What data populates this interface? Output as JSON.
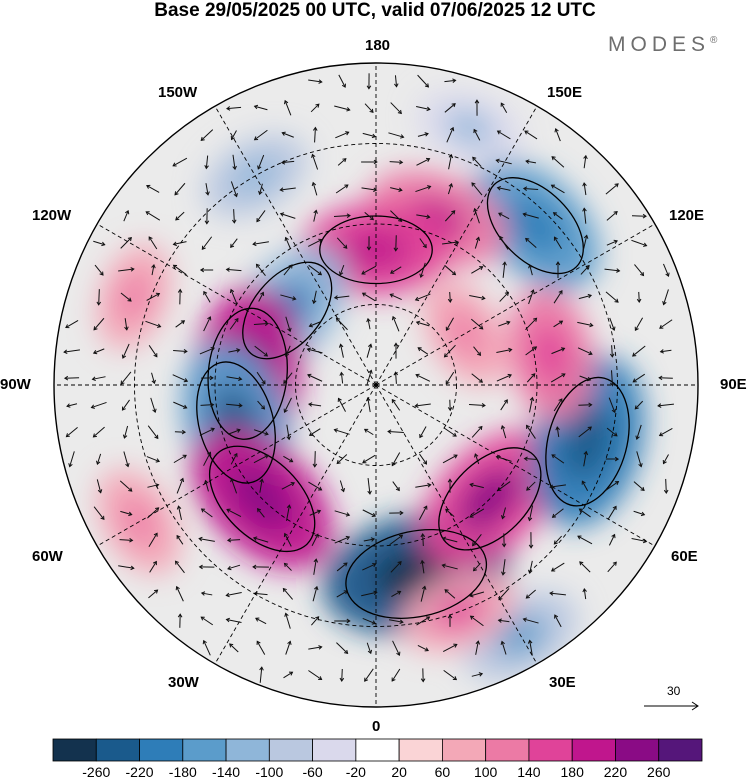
{
  "header": {
    "title": "Base 29/05/2025 00 UTC, valid 07/06/2025 12 UTC",
    "brand": "MODES",
    "brand_mark": "®"
  },
  "map": {
    "projection": "north-polar-stereographic",
    "meridian_labels": {
      "lon_0": "0",
      "lon_30e": "30E",
      "lon_60e": "60E",
      "lon_90e": "90E",
      "lon_120e": "120E",
      "lon_150e": "150E",
      "lon_180": "180",
      "lon_150w": "150W",
      "lon_120w": "120W",
      "lon_90w": "90W",
      "lon_60w": "60W",
      "lon_30w": "30W"
    },
    "background_color": "#ebebeb",
    "graticule_style": "dashed",
    "wind_vectors": true
  },
  "anomaly_cells": [
    {
      "lon": 12,
      "colat": 0.6,
      "value": -240
    },
    {
      "lon": 45,
      "colat": 0.5,
      "value": 170
    },
    {
      "lon": 75,
      "colat": 0.68,
      "value": -190
    },
    {
      "lon": 100,
      "colat": 0.55,
      "value": 110
    },
    {
      "lon": 120,
      "colat": 0.32,
      "value": 70
    },
    {
      "lon": 135,
      "colat": 0.7,
      "value": -150
    },
    {
      "lon": 160,
      "colat": 0.55,
      "value": 130
    },
    {
      "lon": 180,
      "colat": 0.42,
      "value": 140
    },
    {
      "lon": -130,
      "colat": 0.36,
      "value": -140
    },
    {
      "lon": -110,
      "colat": 0.8,
      "value": 60
    },
    {
      "lon": -95,
      "colat": 0.4,
      "value": 190
    },
    {
      "lon": -75,
      "colat": 0.45,
      "value": -170
    },
    {
      "lon": -45,
      "colat": 0.5,
      "value": 180
    },
    {
      "lon": -60,
      "colat": 0.85,
      "value": 70
    },
    {
      "lon": -150,
      "colat": 0.75,
      "value": -70
    },
    {
      "lon": 30,
      "colat": 0.9,
      "value": -90
    },
    {
      "lon": 160,
      "colat": 0.85,
      "value": -60
    },
    {
      "lon": 20,
      "colat": 0.75,
      "value": 80
    }
  ],
  "colorbar": {
    "levels": [
      "-260",
      "-220",
      "-180",
      "-140",
      "-100",
      "-60",
      "-20",
      "20",
      "60",
      "100",
      "140",
      "180",
      "220",
      "260"
    ],
    "colors": [
      "#13324e",
      "#1a5a8c",
      "#2e7db8",
      "#5b9ccb",
      "#8fb6d9",
      "#bac8e0",
      "#dad9ec",
      "#ffffff",
      "#fad4d6",
      "#f3a8b7",
      "#ec7aa5",
      "#e04399",
      "#c0168d",
      "#8a0b85",
      "#55167a"
    ]
  },
  "reference_vector": {
    "label": "30"
  }
}
